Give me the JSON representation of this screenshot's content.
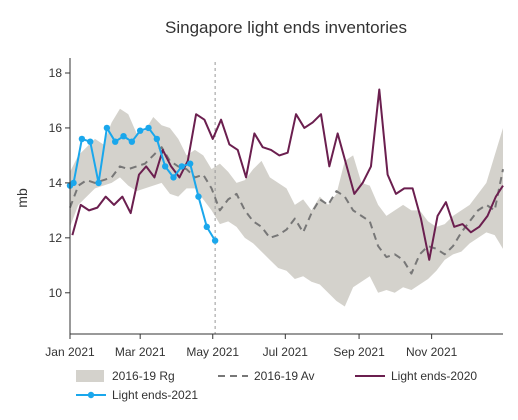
{
  "chart_data": {
    "type": "line",
    "title": "Singapore light ends inventories",
    "ylabel": "mb",
    "xlabel": "",
    "ylim": [
      8.5,
      18.4
    ],
    "xlim": [
      "2021-01-01",
      "2021-12-31"
    ],
    "yticks": [
      10,
      12,
      14,
      16,
      18
    ],
    "xticks": [
      {
        "date": "2021-01-01",
        "label": "Jan 2021"
      },
      {
        "date": "2021-03-01",
        "label": "Mar 2021"
      },
      {
        "date": "2021-05-01",
        "label": "May 2021"
      },
      {
        "date": "2021-07-01",
        "label": "Jul 2021"
      },
      {
        "date": "2021-09-01",
        "label": "Sep 2021"
      },
      {
        "date": "2021-11-01",
        "label": "Nov 2021"
      }
    ],
    "vertical_marker": {
      "date": "2021-05-03",
      "style": "dashed"
    },
    "grid": false,
    "legend_position": "bottom",
    "range_band": {
      "name": "2016-19 Rg",
      "color": "#d4d2cc",
      "dates": [
        "2021-01-01",
        "2021-01-08",
        "2021-01-15",
        "2021-01-22",
        "2021-01-29",
        "2021-02-05",
        "2021-02-12",
        "2021-02-19",
        "2021-02-26",
        "2021-03-05",
        "2021-03-12",
        "2021-03-19",
        "2021-03-26",
        "2021-04-02",
        "2021-04-09",
        "2021-04-16",
        "2021-04-23",
        "2021-04-30",
        "2021-05-07",
        "2021-05-14",
        "2021-05-21",
        "2021-05-28",
        "2021-06-04",
        "2021-06-11",
        "2021-06-18",
        "2021-06-25",
        "2021-07-02",
        "2021-07-09",
        "2021-07-16",
        "2021-07-23",
        "2021-07-30",
        "2021-08-06",
        "2021-08-13",
        "2021-08-20",
        "2021-08-27",
        "2021-09-03",
        "2021-09-10",
        "2021-09-17",
        "2021-09-24",
        "2021-10-01",
        "2021-10-08",
        "2021-10-15",
        "2021-10-22",
        "2021-10-29",
        "2021-11-05",
        "2021-11-12",
        "2021-11-19",
        "2021-11-26",
        "2021-12-03",
        "2021-12-10",
        "2021-12-17",
        "2021-12-24",
        "2021-12-31"
      ],
      "upper": [
        14.4,
        15.0,
        15.3,
        15.6,
        15.4,
        16.2,
        16.7,
        16.5,
        15.8,
        15.9,
        16.4,
        16.1,
        16.0,
        15.6,
        15.0,
        15.2,
        15.0,
        14.5,
        14.7,
        14.4,
        14.0,
        14.1,
        14.5,
        14.8,
        14.2,
        14.0,
        13.8,
        13.2,
        13.4,
        13.0,
        13.5,
        13.2,
        13.6,
        14.8,
        15.0,
        14.0,
        13.9,
        13.2,
        12.8,
        13.0,
        13.2,
        13.0,
        13.0,
        12.6,
        12.4,
        12.5,
        12.8,
        13.0,
        13.2,
        13.6,
        14.0,
        15.0,
        16.0
      ],
      "lower": [
        12.4,
        13.2,
        13.5,
        13.8,
        13.9,
        14.0,
        14.2,
        13.9,
        13.7,
        13.8,
        13.9,
        14.0,
        13.6,
        13.5,
        13.8,
        13.8,
        13.4,
        13.0,
        12.5,
        12.6,
        12.4,
        12.0,
        11.8,
        11.5,
        11.2,
        10.9,
        10.8,
        10.5,
        10.6,
        10.4,
        10.3,
        10.0,
        9.7,
        9.5,
        10.2,
        10.4,
        10.6,
        10.0,
        10.1,
        10.0,
        10.2,
        10.1,
        10.3,
        10.5,
        10.8,
        11.2,
        11.4,
        11.5,
        11.8,
        12.0,
        12.2,
        12.1,
        11.6
      ]
    },
    "series": [
      {
        "name": "2016-19 Av",
        "color": "#777777",
        "style": "dashed",
        "dates": [
          "2021-01-01",
          "2021-01-08",
          "2021-01-15",
          "2021-01-22",
          "2021-01-29",
          "2021-02-05",
          "2021-02-12",
          "2021-02-19",
          "2021-02-26",
          "2021-03-05",
          "2021-03-12",
          "2021-03-19",
          "2021-03-26",
          "2021-04-02",
          "2021-04-09",
          "2021-04-16",
          "2021-04-23",
          "2021-04-30",
          "2021-05-07",
          "2021-05-14",
          "2021-05-21",
          "2021-05-28",
          "2021-06-04",
          "2021-06-11",
          "2021-06-18",
          "2021-06-25",
          "2021-07-02",
          "2021-07-09",
          "2021-07-16",
          "2021-07-23",
          "2021-07-30",
          "2021-08-06",
          "2021-08-13",
          "2021-08-20",
          "2021-08-27",
          "2021-09-03",
          "2021-09-10",
          "2021-09-17",
          "2021-09-24",
          "2021-10-01",
          "2021-10-08",
          "2021-10-15",
          "2021-10-22",
          "2021-10-29",
          "2021-11-05",
          "2021-11-12",
          "2021-11-19",
          "2021-11-26",
          "2021-12-03",
          "2021-12-10",
          "2021-12-17",
          "2021-12-24",
          "2021-12-31"
        ],
        "values": [
          13.1,
          13.9,
          14.1,
          14.0,
          14.1,
          14.2,
          14.6,
          14.5,
          14.6,
          14.7,
          15.0,
          15.3,
          14.8,
          14.6,
          14.5,
          14.2,
          14.3,
          13.8,
          13.0,
          13.4,
          13.6,
          13.0,
          12.6,
          12.4,
          12.0,
          12.1,
          12.3,
          12.7,
          12.2,
          12.9,
          13.4,
          13.2,
          13.7,
          13.5,
          13.0,
          12.8,
          12.6,
          11.7,
          11.3,
          11.4,
          11.2,
          10.7,
          11.4,
          11.7,
          11.6,
          11.4,
          11.7,
          12.2,
          12.6,
          13.0,
          13.2,
          13.0,
          14.5
        ]
      },
      {
        "name": "Light ends-2020",
        "color": "#6b1f4f",
        "style": "solid",
        "dates": [
          "2021-01-03",
          "2021-01-10",
          "2021-01-17",
          "2021-01-24",
          "2021-01-31",
          "2021-02-07",
          "2021-02-14",
          "2021-02-21",
          "2021-02-28",
          "2021-03-06",
          "2021-03-13",
          "2021-03-20",
          "2021-03-27",
          "2021-04-03",
          "2021-04-10",
          "2021-04-17",
          "2021-04-24",
          "2021-05-01",
          "2021-05-08",
          "2021-05-15",
          "2021-05-22",
          "2021-05-29",
          "2021-06-05",
          "2021-06-12",
          "2021-06-19",
          "2021-06-26",
          "2021-07-03",
          "2021-07-10",
          "2021-07-17",
          "2021-07-24",
          "2021-07-31",
          "2021-08-07",
          "2021-08-14",
          "2021-08-21",
          "2021-08-28",
          "2021-09-04",
          "2021-09-11",
          "2021-09-18",
          "2021-09-25",
          "2021-10-02",
          "2021-10-09",
          "2021-10-16",
          "2021-10-23",
          "2021-10-30",
          "2021-11-06",
          "2021-11-13",
          "2021-11-20",
          "2021-11-27",
          "2021-12-04",
          "2021-12-11",
          "2021-12-18",
          "2021-12-25",
          "2021-12-31"
        ],
        "values": [
          12.1,
          13.2,
          13.0,
          13.1,
          13.5,
          13.2,
          13.5,
          12.9,
          14.3,
          14.6,
          14.2,
          15.2,
          14.6,
          14.2,
          14.8,
          16.5,
          16.3,
          15.6,
          16.3,
          15.4,
          15.2,
          14.2,
          15.8,
          15.3,
          15.2,
          15.0,
          15.1,
          16.5,
          16.0,
          16.2,
          16.5,
          14.6,
          15.8,
          14.7,
          13.6,
          14.0,
          14.6,
          17.4,
          14.3,
          13.6,
          13.8,
          13.8,
          12.7,
          11.2,
          12.8,
          13.3,
          12.4,
          12.5,
          12.2,
          12.4,
          12.8,
          13.5,
          13.9
        ]
      },
      {
        "name": "Light ends-2021",
        "color": "#1aa7ec",
        "style": "solid-markers",
        "dates": [
          "2021-01-01",
          "2021-01-04",
          "2021-01-11",
          "2021-01-18",
          "2021-01-25",
          "2021-02-01",
          "2021-02-08",
          "2021-02-15",
          "2021-02-22",
          "2021-03-01",
          "2021-03-08",
          "2021-03-15",
          "2021-03-22",
          "2021-03-29",
          "2021-04-05",
          "2021-04-12",
          "2021-04-19",
          "2021-04-26",
          "2021-05-03"
        ],
        "values": [
          13.9,
          14.0,
          15.6,
          15.5,
          14.0,
          16.0,
          15.5,
          15.7,
          15.5,
          15.9,
          16.0,
          15.6,
          14.6,
          14.2,
          14.6,
          14.7,
          13.5,
          12.4,
          11.9
        ]
      }
    ],
    "legend": [
      {
        "label": "2016-19 Rg"
      },
      {
        "label": "2016-19 Av"
      },
      {
        "label": "Light ends-2020"
      },
      {
        "label": "Light ends-2021"
      }
    ]
  }
}
